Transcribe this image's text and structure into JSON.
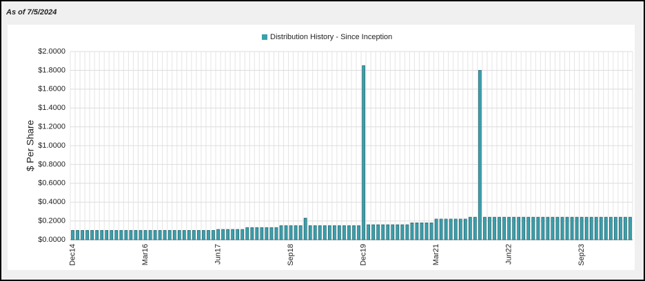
{
  "header": {
    "as_of": "As of 7/5/2024"
  },
  "chart_data": {
    "type": "bar",
    "series_name": "Distribution History - Since Inception",
    "y_label": "$ Per Share",
    "color": "#3aa0ad",
    "grid": true,
    "legend": "top",
    "categories": [
      "Dec14",
      null,
      null,
      null,
      null,
      null,
      null,
      null,
      null,
      null,
      null,
      null,
      null,
      null,
      null,
      "Mar16",
      null,
      null,
      null,
      null,
      null,
      null,
      null,
      null,
      null,
      null,
      null,
      null,
      null,
      null,
      "Jun17",
      null,
      null,
      null,
      null,
      null,
      null,
      null,
      null,
      null,
      null,
      null,
      null,
      null,
      null,
      "Sep18",
      null,
      null,
      null,
      null,
      null,
      null,
      null,
      null,
      null,
      null,
      null,
      null,
      null,
      null,
      "Dec19",
      null,
      null,
      null,
      null,
      null,
      null,
      null,
      null,
      null,
      null,
      null,
      null,
      null,
      null,
      "Mar21",
      null,
      null,
      null,
      null,
      null,
      null,
      null,
      null,
      null,
      null,
      null,
      null,
      null,
      null,
      "Jun22",
      null,
      null,
      null,
      null,
      null,
      null,
      null,
      null,
      null,
      null,
      null,
      null,
      null,
      null,
      "Sep23",
      null,
      null,
      null,
      null,
      null,
      null,
      null,
      null,
      null,
      null
    ],
    "values": [
      0.1,
      0.1,
      0.1,
      0.1,
      0.1,
      0.1,
      0.1,
      0.1,
      0.1,
      0.1,
      0.1,
      0.1,
      0.1,
      0.1,
      0.1,
      0.1,
      0.1,
      0.1,
      0.1,
      0.1,
      0.1,
      0.1,
      0.1,
      0.1,
      0.1,
      0.1,
      0.1,
      0.1,
      0.1,
      0.1,
      0.11,
      0.11,
      0.11,
      0.11,
      0.11,
      0.11,
      0.13,
      0.13,
      0.13,
      0.13,
      0.13,
      0.13,
      0.13,
      0.15,
      0.15,
      0.15,
      0.15,
      0.15,
      0.23,
      0.15,
      0.15,
      0.15,
      0.15,
      0.15,
      0.15,
      0.15,
      0.15,
      0.15,
      0.15,
      0.15,
      1.85,
      0.16,
      0.16,
      0.16,
      0.16,
      0.16,
      0.16,
      0.16,
      0.16,
      0.16,
      0.18,
      0.18,
      0.18,
      0.18,
      0.18,
      0.22,
      0.22,
      0.22,
      0.22,
      0.22,
      0.22,
      0.22,
      0.24,
      0.24,
      1.8,
      0.24,
      0.24,
      0.24,
      0.24,
      0.24,
      0.24,
      0.24,
      0.24,
      0.24,
      0.24,
      0.24,
      0.24,
      0.24,
      0.24,
      0.24,
      0.24,
      0.24,
      0.24,
      0.24,
      0.24,
      0.24,
      0.24,
      0.24,
      0.24,
      0.24,
      0.24,
      0.24,
      0.24,
      0.24,
      0.24,
      0.24
    ],
    "ylim": [
      0,
      2
    ],
    "yticks": [
      {
        "value": 0,
        "label": "$0.0000"
      },
      {
        "value": 0.2,
        "label": "$0.2000"
      },
      {
        "value": 0.4,
        "label": "$0.4000"
      },
      {
        "value": 0.6,
        "label": "$0.6000"
      },
      {
        "value": 0.8,
        "label": "$0.8000"
      },
      {
        "value": 1.0,
        "label": "$1.0000"
      },
      {
        "value": 1.2,
        "label": "$1.2000"
      },
      {
        "value": 1.4,
        "label": "$1.4000"
      },
      {
        "value": 1.6,
        "label": "$1.6000"
      },
      {
        "value": 1.8,
        "label": "$1.8000"
      },
      {
        "value": 2.0,
        "label": "$2.0000"
      }
    ]
  }
}
